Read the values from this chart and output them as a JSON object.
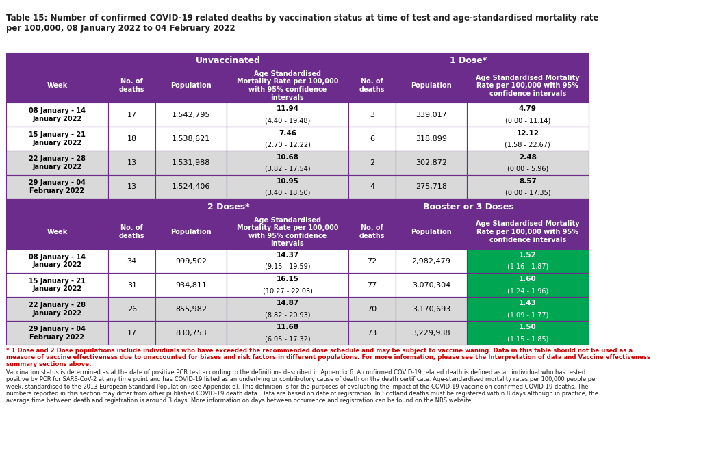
{
  "title": "Table 15: Number of confirmed COVID-19 related deaths by vaccination status at time of test and age-standardised mortality rate\nper 100,000, 08 January 2022 to 04 February 2022",
  "purple_dark": "#6B2C8C",
  "purple_header": "#7B3FA0",
  "green_highlight": "#00A651",
  "gray_row": "#D9D9D9",
  "white_row": "#FFFFFF",
  "border_color": "#6B2C8C",
  "text_dark": "#1F1F1F",
  "title_color": "#1F1F1F",
  "col_headers_top": [
    "Week",
    "No. of\ndeaths",
    "Population",
    "Age Standardised\nMortality Rate per 100,000\nwith 95% confidence\nintervals",
    "No. of\ndeaths",
    "Population",
    "Age Standardised Mortality\nRate per 100,000 with 95%\nconfidence intervals"
  ],
  "section_headers": [
    "Unvaccinated",
    "1 Dose*",
    "2 Doses*",
    "Booster or 3 Doses"
  ],
  "weeks": [
    "08 January - 14\nJanuary 2022",
    "15 January - 21\nJanuary 2022",
    "22 January - 28\nJanuary 2022",
    "29 January - 04\nFebruary 2022"
  ],
  "unvacc_deaths": [
    "17",
    "18",
    "13",
    "13"
  ],
  "unvacc_pop": [
    "1,542,795",
    "1,538,621",
    "1,531,988",
    "1,524,406"
  ],
  "unvacc_rate": [
    "11.94 (4.40 - 19.48)",
    "7.46 (2.70 - 12.22)",
    "10.68 (3.82 - 17.54)",
    "10.95 (3.40 - 18.50)"
  ],
  "dose1_deaths": [
    "3",
    "6",
    "2",
    "4"
  ],
  "dose1_pop": [
    "339,017",
    "318,899",
    "302,872",
    "275,718"
  ],
  "dose1_rate": [
    "4.79 (0.00 - 11.14)",
    "12.12 (1.58 - 22.67)",
    "2.48 (0.00 - 5.96)",
    "8.57 (0.00 - 17.35)"
  ],
  "dose2_deaths": [
    "34",
    "31",
    "26",
    "17"
  ],
  "dose2_pop": [
    "999,502",
    "934,811",
    "855,982",
    "830,753"
  ],
  "dose2_rate": [
    "14.37 (9.15 - 19.59)",
    "16.15 (10.27 - 22.03)",
    "14.87 (8.82 - 20.93)",
    "11.68 (6.05 - 17.32)"
  ],
  "booster_deaths": [
    "72",
    "77",
    "70",
    "73"
  ],
  "booster_pop": [
    "2,982,479",
    "3,070,304",
    "3,170,693",
    "3,229,938"
  ],
  "booster_rate": [
    "1.52 (1.16 - 1.87)",
    "1.60 (1.24 - 1.96)",
    "1.43 (1.09 - 1.77)",
    "1.50 (1.15 - 1.85)"
  ],
  "footnote_red": "* 1 Dose and 2 Dose populations include individuals who have exceeded the recommended dose schedule and may be subject to vaccine waning. Data in this table should not be used as a\nmeasure of vaccine effectiveness due to unaccounted for biases and risk factors in different populations. For more information, please see the Interpretation of data and Vaccine effectiveness\nsummary sections above.",
  "footnote_black": "Vaccination status is determined as at the date of positive PCR test according to the definitions described in Appendix 6. A confirmed COVID-19 related death is defined as an individual who has tested\npositive by PCR for SARS-CoV-2 at any time point and has COVID-19 listed as an underlying or contributory cause of death on the death certificate. Age-standardised mortality rates per 100,000 people per\nweek, standardised to the 2013 European Standard Population (see Appendix 6). This definition is for the purposes of evaluating the impact of the COVID-19 vaccine on confirmed COVID-19 deaths. The\nnumbers reported in this section may differ from other published COVID-19 death data. Data are based on date of registration. In Scotland deaths must be registered within 8 days although in practice, the\naverage time between death and registration is around 3 days. More information on days between occurrence and registration can be found on the NRS website."
}
